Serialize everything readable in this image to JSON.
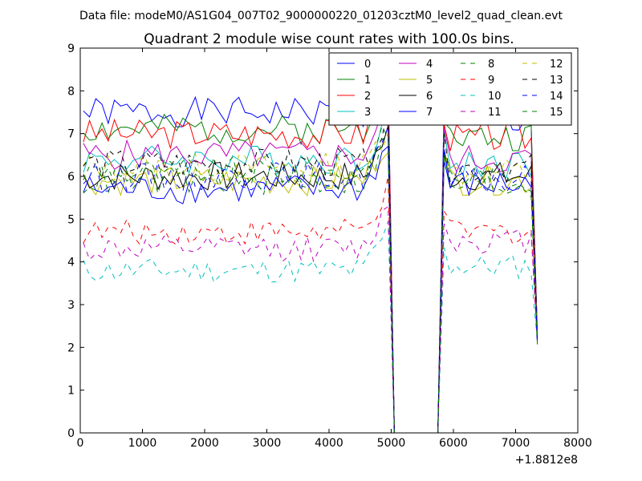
{
  "header": {
    "data_file": "Data file: modeM0/AS1G04_007T02_9000000220_01203cztM0_level2_quad_clean.evt"
  },
  "chart_data": {
    "type": "line",
    "title": "Quadrant 2 module wise count rates with 100.0s bins.",
    "xlabel": "",
    "ylabel": "",
    "x_offset_label": "+1.8812e8",
    "xlim": [
      0,
      8000
    ],
    "ylim": [
      0,
      9
    ],
    "x_ticks": [
      "0",
      "1000",
      "2000",
      "3000",
      "4000",
      "5000",
      "6000",
      "7000",
      "8000"
    ],
    "y_ticks": [
      "0",
      "1",
      "2",
      "3",
      "4",
      "5",
      "6",
      "7",
      "8",
      "9"
    ],
    "grid": false,
    "legend_position": "top-right",
    "x_segment1": [
      50,
      150,
      250,
      350,
      450,
      550,
      650,
      750,
      850,
      950,
      1050,
      1150,
      1250,
      1350,
      1450,
      1550,
      1650,
      1750,
      1850,
      1950,
      2050,
      2150,
      2250,
      2350,
      2450,
      2550,
      2650,
      2750,
      2850,
      2950,
      3050,
      3150,
      3250,
      3350,
      3450,
      3550,
      3650,
      3750,
      3850,
      3950,
      4050,
      4150,
      4250,
      4350,
      4450,
      4550,
      4650,
      4750,
      4850,
      4950,
      5050
    ],
    "x_segment2": [
      5750,
      5850,
      5950,
      6050,
      6150,
      6250,
      6350,
      6450,
      6550,
      6650,
      6750,
      6850,
      6950,
      7050,
      7150,
      7250,
      7350
    ],
    "series": [
      {
        "name": "0",
        "color": "#0000ff",
        "dash": "solid",
        "base1": 7.5,
        "base2": 7.3,
        "amp": 0.35,
        "seed": 1
      },
      {
        "name": "1",
        "color": "#008000",
        "dash": "solid",
        "base1": 7.1,
        "base2": 6.9,
        "amp": 0.35,
        "seed": 2
      },
      {
        "name": "2",
        "color": "#ff0000",
        "dash": "solid",
        "base1": 7.0,
        "base2": 6.9,
        "amp": 0.35,
        "seed": 3
      },
      {
        "name": "3",
        "color": "#00bfbf",
        "dash": "solid",
        "base1": 6.4,
        "base2": 6.3,
        "amp": 0.35,
        "seed": 4
      },
      {
        "name": "4",
        "color": "#bf00bf",
        "dash": "solid",
        "base1": 6.5,
        "base2": 6.4,
        "amp": 0.35,
        "seed": 5
      },
      {
        "name": "5",
        "color": "#bfbf00",
        "dash": "solid",
        "base1": 5.9,
        "base2": 5.9,
        "amp": 0.35,
        "seed": 6
      },
      {
        "name": "6",
        "color": "#000000",
        "dash": "solid",
        "base1": 6.0,
        "base2": 6.0,
        "amp": 0.35,
        "seed": 7
      },
      {
        "name": "7",
        "color": "#0000ff",
        "dash": "solid",
        "base1": 5.7,
        "base2": 5.8,
        "amp": 0.35,
        "seed": 8
      },
      {
        "name": "8",
        "color": "#008000",
        "dash": "dashed",
        "base1": 6.1,
        "base2": 6.0,
        "amp": 0.35,
        "seed": 9
      },
      {
        "name": "9",
        "color": "#ff0000",
        "dash": "dashed",
        "base1": 4.7,
        "base2": 4.7,
        "amp": 0.3,
        "seed": 10
      },
      {
        "name": "10",
        "color": "#00bfbf",
        "dash": "dashed",
        "base1": 3.8,
        "base2": 3.9,
        "amp": 0.3,
        "seed": 11
      },
      {
        "name": "11",
        "color": "#bf00bf",
        "dash": "dashed",
        "base1": 4.3,
        "base2": 4.5,
        "amp": 0.3,
        "seed": 12
      },
      {
        "name": "12",
        "color": "#bfbf00",
        "dash": "dashed",
        "base1": 6.2,
        "base2": 6.1,
        "amp": 0.35,
        "seed": 13
      },
      {
        "name": "13",
        "color": "#000000",
        "dash": "dashed",
        "base1": 6.3,
        "base2": 6.2,
        "amp": 0.35,
        "seed": 14
      },
      {
        "name": "14",
        "color": "#0000ff",
        "dash": "dashed",
        "base1": 6.0,
        "base2": 5.9,
        "amp": 0.35,
        "seed": 15
      },
      {
        "name": "15",
        "color": "#008000",
        "dash": "dashed",
        "base1": 5.9,
        "base2": 5.8,
        "amp": 0.35,
        "seed": 16
      }
    ]
  }
}
